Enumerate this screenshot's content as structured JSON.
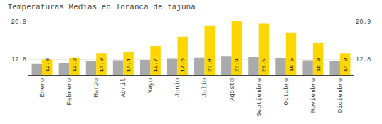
{
  "chart_data": {
    "type": "bar",
    "title": "Temperaturas Medias en loranca de tajuna",
    "categories": [
      "Enero",
      "Febrero",
      "Marzo",
      "Abril",
      "Mayo",
      "Junio",
      "Julio",
      "Agosto",
      "Septiembre",
      "Octubre",
      "Noviembre",
      "Diciembre"
    ],
    "series": [
      {
        "color": "#AAAAAA",
        "values": [
          11.8,
          12.0,
          12.4,
          12.6,
          12.7,
          12.9,
          13.2,
          13.4,
          13.3,
          13.0,
          12.6,
          12.4
        ]
      },
      {
        "color": "#FFD700",
        "values": [
          12.8,
          13.2,
          14.0,
          14.4,
          15.7,
          17.6,
          20.0,
          20.9,
          20.5,
          18.5,
          16.3,
          14.0
        ],
        "value_labels": [
          "12.8",
          "13.2",
          "14.0",
          "14.4",
          "15.7",
          "17.6",
          "20.0",
          "20.9",
          "20.5",
          "18.5",
          "16.3",
          "14.0"
        ],
        "data_labels": true
      }
    ],
    "ylim": [
      9.5,
      21.8
    ],
    "yticks": [
      12.8,
      20.9
    ],
    "y2lim": [
      9.5,
      21.8
    ],
    "y2ticks": [
      12.8,
      20.9
    ],
    "grid": true
  }
}
